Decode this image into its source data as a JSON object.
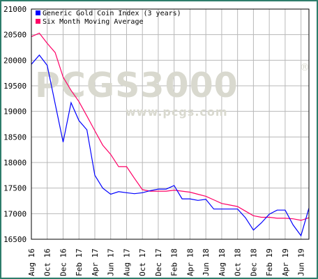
{
  "watermark": {
    "brand": "PCGS3000",
    "site": "www.pcgs.com",
    "registered_mark": "®"
  },
  "chart_data": {
    "type": "line",
    "ylim": [
      16500,
      21000
    ],
    "y_ticks": [
      21000,
      20500,
      20000,
      19500,
      19000,
      18500,
      18000,
      17500,
      17000,
      16500
    ],
    "x_tick_labels": [
      "Aug 16",
      "Oct 16",
      "Dec 16",
      "Feb 17",
      "Apr 17",
      "Jun 17",
      "Aug 17",
      "Oct 17",
      "Dec 17",
      "Feb 18",
      "Apr 18",
      "Jun 18",
      "Aug 18",
      "Oct 18",
      "Dec 18",
      "Feb 19",
      "Apr 19",
      "Jun 19"
    ],
    "x_start": "2016-08",
    "grid": true,
    "legend_position": "top-left",
    "series": [
      {
        "name": "Generic Gold Coin Index (3 years)",
        "color": "#0000ff",
        "values": [
          19920,
          20100,
          19900,
          19150,
          18400,
          19170,
          18820,
          18640,
          17750,
          17500,
          17380,
          17430,
          17410,
          17390,
          17410,
          17450,
          17480,
          17480,
          17550,
          17290,
          17290,
          17260,
          17280,
          17090,
          17090,
          17090,
          17090,
          16920,
          16680,
          16820,
          16990,
          17070,
          17070,
          16780,
          16570,
          17110
        ]
      },
      {
        "name": "Six Month Moving Average",
        "color": "#ff0066",
        "values": [
          20460,
          20530,
          20330,
          20150,
          19670,
          19410,
          19190,
          18910,
          18620,
          18340,
          18160,
          17920,
          17920,
          17690,
          17470,
          17440,
          17440,
          17440,
          17460,
          17440,
          17420,
          17380,
          17340,
          17270,
          17200,
          17170,
          17140,
          17050,
          16960,
          16930,
          16930,
          16910,
          16910,
          16900,
          16870,
          16920
        ]
      }
    ]
  }
}
